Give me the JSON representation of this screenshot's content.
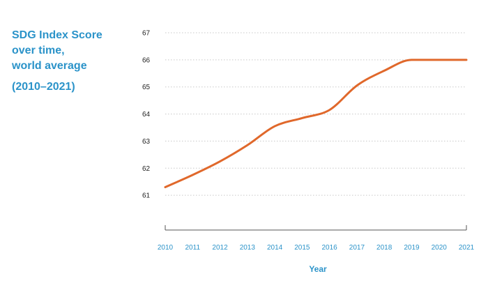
{
  "chart_data": {
    "type": "line",
    "title_lines": [
      "SDG Index Score",
      "over time,",
      "world average"
    ],
    "subtitle": "(2010–2021)",
    "xlabel": "Year",
    "ylabel": "",
    "x": [
      2010,
      2011,
      2012,
      2013,
      2014,
      2015,
      2016,
      2017,
      2018,
      2019,
      2020,
      2021
    ],
    "x_tick_labels": [
      "2010",
      "2011",
      "2012",
      "2013",
      "2014",
      "2015",
      "2016",
      "2017",
      "2018",
      "2019",
      "2020",
      "2021"
    ],
    "y_tick_labels": [
      "67",
      "66",
      "65",
      "64",
      "63",
      "62",
      "61"
    ],
    "y_ticks": [
      67,
      66,
      65,
      64,
      63,
      62,
      61
    ],
    "ylim": [
      60,
      67
    ],
    "xlim": [
      2010,
      2021
    ],
    "grid": "horizontal-dotted",
    "legend": "none",
    "series": [
      {
        "color": "#e0682b",
        "values": [
          61.3,
          61.75,
          62.25,
          62.85,
          63.55,
          63.85,
          64.15,
          65.05,
          65.6,
          66.0,
          66.0,
          66.0
        ]
      }
    ]
  }
}
